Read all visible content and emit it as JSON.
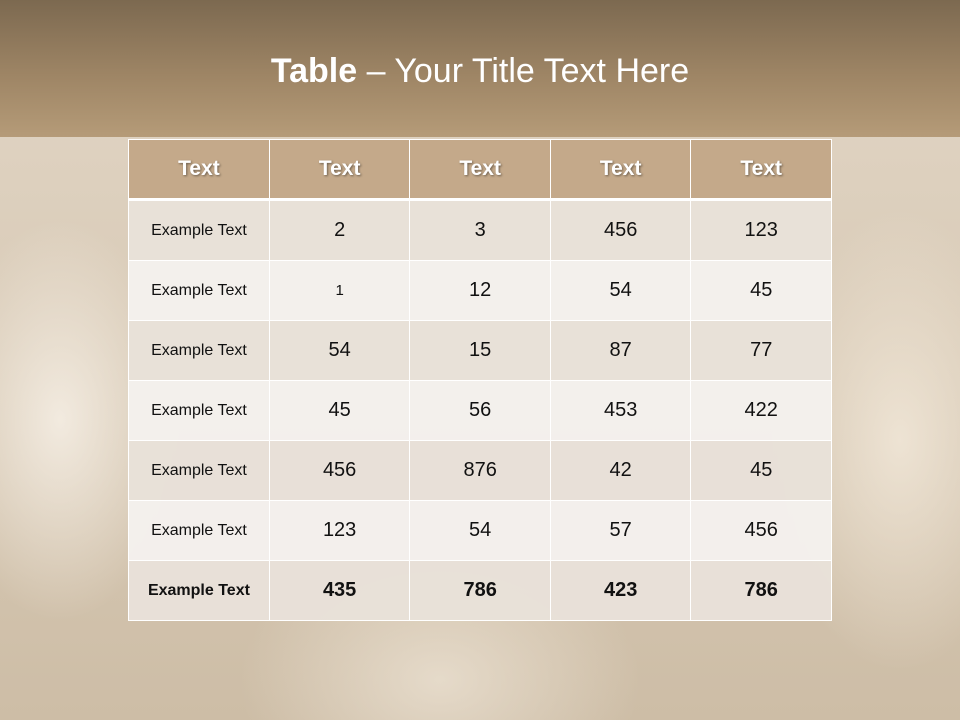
{
  "title": {
    "bold": "Table",
    "rest": " – Your Title Text Here"
  },
  "table": {
    "headers": [
      "Text",
      "Text",
      "Text",
      "Text",
      "Text"
    ],
    "rows": [
      [
        "Example Text",
        "2",
        "3",
        "456",
        "123"
      ],
      [
        "Example Text",
        "1",
        "12",
        "54",
        "45"
      ],
      [
        "Example Text",
        "54",
        "15",
        "87",
        "77"
      ],
      [
        "Example Text",
        "45",
        "56",
        "453",
        "422"
      ],
      [
        "Example Text",
        "456",
        "876",
        "42",
        "45"
      ],
      [
        "Example Text",
        "123",
        "54",
        "57",
        "456"
      ],
      [
        "Example Text",
        "435",
        "786",
        "423",
        "786"
      ]
    ]
  },
  "colors": {
    "header_fill": "#c4a98a",
    "title_band": "#9e8565"
  }
}
